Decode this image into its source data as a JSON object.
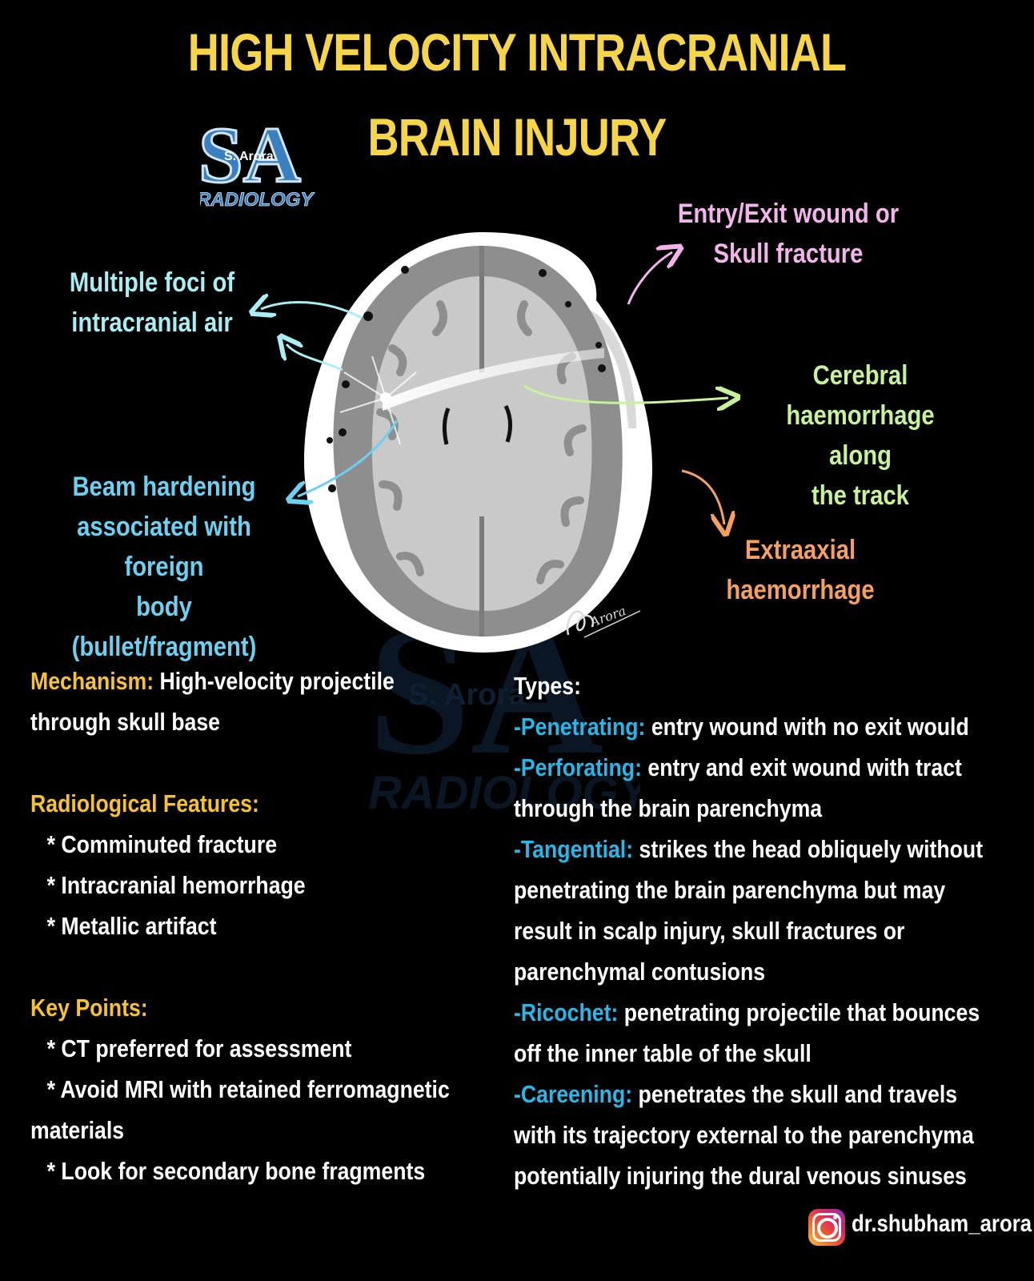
{
  "title": {
    "line1": "HIGH VELOCITY INTRACRANIAL",
    "line2": "BRAIN INJURY"
  },
  "logo": {
    "letters": "SA",
    "name": "S. Arora",
    "subtitle": "RADIOLOGY"
  },
  "watermark": {
    "letters": "SA",
    "name": "S. Arora",
    "subtitle": "RADIOLOGY"
  },
  "signature": "Arora",
  "callouts": {
    "air": {
      "line1": "Multiple foci of",
      "line2": "intracranial air",
      "color": "#a8eef2"
    },
    "wound": {
      "line1": "Entry/Exit wound or",
      "line2": "Skull fracture",
      "color": "#f2b4ea"
    },
    "track": {
      "line1": "Cerebral",
      "line2": "haemorrhage along",
      "line3": "the track",
      "color": "#c8f29a"
    },
    "beam": {
      "line1": "Beam hardening",
      "line2": "associated with foreign",
      "line3": "body (bullet/fragment)",
      "color": "#6cd0f0"
    },
    "extraaxial": {
      "line1": "Extraaxial",
      "line2": "haemorrhage",
      "color": "#f5a060"
    }
  },
  "left_column": {
    "mechanism_label": "Mechanism:",
    "mechanism_text1": " High-velocity projectile",
    "mechanism_text2": "through skull base",
    "features_label": "Radiological Features:",
    "features": [
      "* Comminuted fracture",
      "* Intracranial hemorrhage",
      "* Metallic artifact"
    ],
    "keypoints_label": "Key Points:",
    "keypoint1": "* CT preferred for assessment",
    "keypoint2a": "* Avoid MRI with retained ferromagnetic",
    "keypoint2b": "materials",
    "keypoint3": "* Look for secondary bone fragments"
  },
  "right_column": {
    "types_label": "Types:",
    "penetrating_label": "-Penetrating:",
    "penetrating_text": " entry wound with no exit would",
    "perforating_label": "-Perforating:",
    "perforating_text1": " entry and exit wound with tract",
    "perforating_text2": "through the brain parenchyma",
    "tangential_label": "-Tangential:",
    "tangential_text1": " strikes the head obliquely without",
    "tangential_text2": "penetrating the brain parenchyma but may",
    "tangential_text3": "result in scalp injury, skull fractures or",
    "tangential_text4": "parenchymal contusions",
    "ricochet_label": "-Ricochet:",
    "ricochet_text1": " penetrating projectile that bounces",
    "ricochet_text2": "off the inner table of the skull",
    "careening_label": "-Careening:",
    "careening_text1": " penetrates the skull and travels",
    "careening_text2": "with its trajectory external to the parenchyma",
    "careening_text3": "potentially injuring the dural venous sinuses"
  },
  "footer": {
    "icon": "instagram-icon",
    "handle": "dr.shubham_arora"
  }
}
